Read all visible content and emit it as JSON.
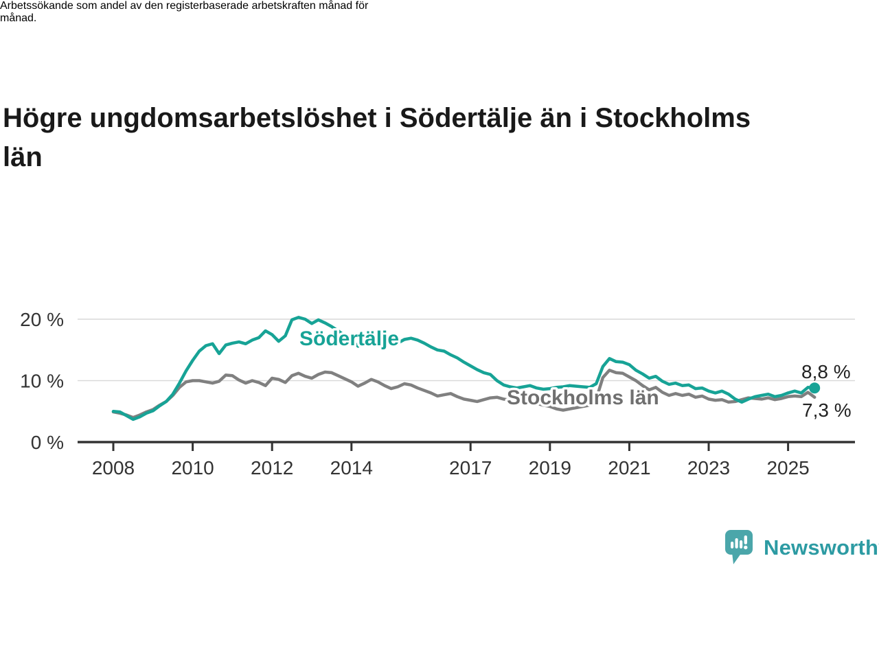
{
  "header": {
    "title_lines": [
      "Högre ungdomsarbetslöshet i Södertälje än i Stockholms",
      "län"
    ],
    "subtitle_lines": [
      "Arbetssökande som andel av den registerbaserade arbetskraften månad för",
      "månad."
    ]
  },
  "footer": {
    "brand": "Newsworthy"
  },
  "colors": {
    "sodertalje_line": "#17A396",
    "stockholm_line": "#808080",
    "stockholm_label": "#6F6F6F",
    "value_label": "#222222",
    "axis": "#333333",
    "gridline": "#D9D9D9",
    "brand_teal": "#2D9BA3",
    "logo_bubble": "#4BA6AA"
  },
  "chart_data": {
    "type": "line",
    "title": "Högre ungdomsarbetslöshet i Södertälje än i Stockholms län",
    "subtitle": "Arbetssökande som andel av den registerbaserade arbetskraften månad för månad.",
    "xlabel": "",
    "ylabel": "",
    "x_unit": "year",
    "x_range": [
      2008.0,
      2025.67
    ],
    "x_step": 0.16667,
    "sampling": "bimonthly approximation of monthly series",
    "ylim": [
      0,
      21.5
    ],
    "gridline_values": [
      10,
      20
    ],
    "legend_position": "inline-labels",
    "y_ticks": [
      {
        "value": 0,
        "label": "0 %"
      },
      {
        "value": 10,
        "label": "10 %"
      },
      {
        "value": 20,
        "label": "20 %"
      }
    ],
    "x_ticks": [
      {
        "year": 2008,
        "label": "2008"
      },
      {
        "year": 2010,
        "label": "2010"
      },
      {
        "year": 2012,
        "label": "2012"
      },
      {
        "year": 2014,
        "label": "2014"
      },
      {
        "year": 2017,
        "label": "2017"
      },
      {
        "year": 2019,
        "label": "2019"
      },
      {
        "year": 2021,
        "label": "2021"
      },
      {
        "year": 2023,
        "label": "2023"
      },
      {
        "year": 2025,
        "label": "2025"
      }
    ],
    "series": [
      {
        "name": "Stockholms län",
        "color": "#808080",
        "label_color": "#6F6F6F",
        "end_label": "7,3 %",
        "end_value": 7.3,
        "end_dot": false,
        "values": [
          4.9,
          4.7,
          4.4,
          4.0,
          4.4,
          4.9,
          5.3,
          6.0,
          6.6,
          7.6,
          8.9,
          9.8,
          10.0,
          10.0,
          9.8,
          9.6,
          9.9,
          10.9,
          10.8,
          10.1,
          9.6,
          10.0,
          9.7,
          9.2,
          10.4,
          10.2,
          9.7,
          10.8,
          11.2,
          10.7,
          10.4,
          11.0,
          11.4,
          11.3,
          10.8,
          10.3,
          9.8,
          9.1,
          9.6,
          10.2,
          9.8,
          9.2,
          8.7,
          9.0,
          9.5,
          9.3,
          8.8,
          8.4,
          8.0,
          7.5,
          7.7,
          7.9,
          7.4,
          7.0,
          6.8,
          6.6,
          6.9,
          7.2,
          7.3,
          7.0,
          6.8,
          6.5,
          6.7,
          6.6,
          6.3,
          6.0,
          5.8,
          5.4,
          5.2,
          5.4,
          5.6,
          5.8,
          6.0,
          7.0,
          10.5,
          11.7,
          11.3,
          11.2,
          10.6,
          10.0,
          9.2,
          8.5,
          8.9,
          8.1,
          7.6,
          7.9,
          7.6,
          7.8,
          7.3,
          7.5,
          7.0,
          6.8,
          6.9,
          6.5,
          6.6,
          6.9,
          7.2,
          7.1,
          7.0,
          7.2,
          6.9,
          7.1,
          7.4,
          7.5,
          7.4,
          8.1,
          7.3
        ]
      },
      {
        "name": "Södertälje",
        "color": "#17A396",
        "label_color": "#17A396",
        "end_label": "8,8 %",
        "end_value": 8.8,
        "end_dot": true,
        "values": [
          5.0,
          4.9,
          4.3,
          3.7,
          4.1,
          4.7,
          5.1,
          5.9,
          6.6,
          7.8,
          9.6,
          11.6,
          13.3,
          14.8,
          15.7,
          16.0,
          14.4,
          15.8,
          16.1,
          16.3,
          16.0,
          16.6,
          17.0,
          18.1,
          17.5,
          16.4,
          17.3,
          19.9,
          20.3,
          20.0,
          19.3,
          19.9,
          19.4,
          18.8,
          18.1,
          17.3,
          16.6,
          15.6,
          16.2,
          16.5,
          16.3,
          16.0,
          15.9,
          16.1,
          16.7,
          16.9,
          16.6,
          16.1,
          15.5,
          15.0,
          14.8,
          14.2,
          13.7,
          13.0,
          12.4,
          11.8,
          11.3,
          11.0,
          10.0,
          9.3,
          9.0,
          8.8,
          9.0,
          9.2,
          8.8,
          8.6,
          8.7,
          8.9,
          9.0,
          9.2,
          9.1,
          9.0,
          8.9,
          9.5,
          12.3,
          13.6,
          13.1,
          13.0,
          12.6,
          11.7,
          11.1,
          10.4,
          10.7,
          9.9,
          9.4,
          9.6,
          9.2,
          9.3,
          8.7,
          8.8,
          8.3,
          8.0,
          8.3,
          7.8,
          7.0,
          6.5,
          7.0,
          7.4,
          7.6,
          7.8,
          7.4,
          7.6,
          8.0,
          8.3,
          8.0,
          8.9,
          8.8
        ]
      }
    ]
  }
}
